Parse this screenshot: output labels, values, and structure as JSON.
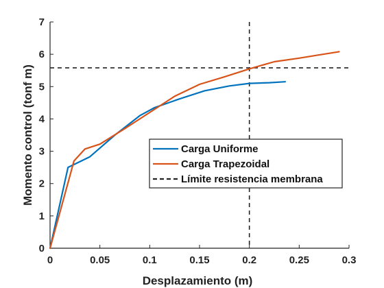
{
  "chart_data": {
    "type": "line",
    "title": "",
    "xlabel": "Desplazamiento (m)",
    "ylabel": "Momento control (tonf m)",
    "xlim": [
      0,
      0.3
    ],
    "ylim": [
      0,
      7
    ],
    "xticks": [
      0,
      0.05,
      0.1,
      0.15,
      0.2,
      0.25,
      0.3
    ],
    "xtick_labels": [
      "0",
      "0.05",
      "0.1",
      "0.15",
      "0.2",
      "0.25",
      "0.3"
    ],
    "yticks": [
      0,
      1,
      2,
      3,
      4,
      5,
      6,
      7
    ],
    "ytick_labels": [
      "0",
      "1",
      "2",
      "3",
      "4",
      "5",
      "6",
      "7"
    ],
    "grid": false,
    "legend_position": "center-right",
    "series": [
      {
        "name": "Carga Uniforme",
        "color": "#0072BD",
        "style": "solid",
        "x": [
          0,
          0.018,
          0.04,
          0.065,
          0.09,
          0.105,
          0.13,
          0.155,
          0.18,
          0.2,
          0.22,
          0.236
        ],
        "y": [
          0,
          2.5,
          2.83,
          3.5,
          4.1,
          4.35,
          4.62,
          4.87,
          5.02,
          5.1,
          5.12,
          5.15
        ]
      },
      {
        "name": "Carga Trapezoidal",
        "color": "#D95319",
        "style": "solid",
        "x": [
          0,
          0.024,
          0.035,
          0.05,
          0.075,
          0.1,
          0.125,
          0.15,
          0.175,
          0.2,
          0.225,
          0.25,
          0.27,
          0.29
        ],
        "y": [
          0,
          2.7,
          3.07,
          3.22,
          3.7,
          4.2,
          4.7,
          5.07,
          5.3,
          5.55,
          5.77,
          5.88,
          5.98,
          6.08
        ]
      }
    ],
    "reference_lines": [
      {
        "name": "Límite resistencia membrana",
        "color": "#222222",
        "style": "dashed",
        "vertical_x": 0.2,
        "horizontal_y": 5.58
      }
    ]
  }
}
